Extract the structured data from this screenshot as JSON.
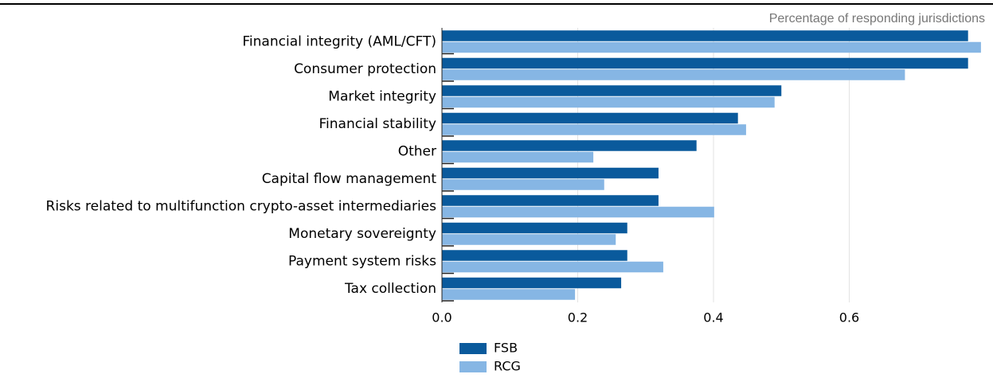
{
  "chart_data": {
    "type": "hbar",
    "subtitle": "Percentage of responding jurisdictions",
    "categories": [
      "Financial integrity (AML/CFT)",
      "Consumer protection",
      "Market integrity",
      "Financial stability",
      "Other",
      "Capital flow management",
      "Risks related to multifunction crypto-asset intermediaries",
      "Monetary sovereignty",
      "Payment system risks",
      "Tax collection"
    ],
    "series": [
      {
        "name": "FSB",
        "color": "#0a5a9c",
        "values": [
          0.775,
          0.775,
          0.5,
          0.436,
          0.375,
          0.319,
          0.319,
          0.273,
          0.273,
          0.264
        ]
      },
      {
        "name": "RCG",
        "color": "#86b6e4",
        "values": [
          0.794,
          0.682,
          0.49,
          0.448,
          0.223,
          0.239,
          0.401,
          0.256,
          0.326,
          0.196
        ]
      }
    ],
    "xlim": [
      0,
      0.8
    ],
    "xticks": [
      {
        "value": 0,
        "label": "0.0"
      },
      0.2,
      0.4,
      0.6
    ],
    "grid": true
  }
}
